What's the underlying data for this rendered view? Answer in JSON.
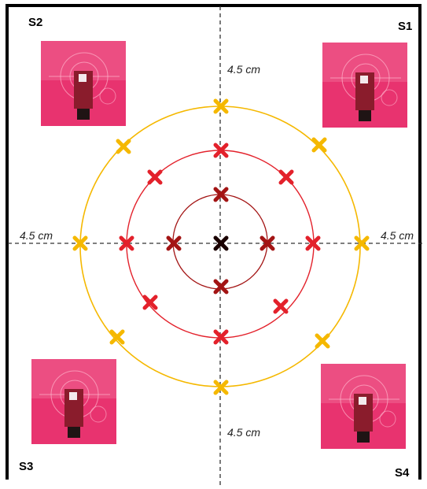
{
  "sensors": [
    {
      "id": "S1",
      "label": "S1"
    },
    {
      "id": "S2",
      "label": "S2"
    },
    {
      "id": "S3",
      "label": "S3"
    },
    {
      "id": "S4",
      "label": "S4"
    }
  ],
  "distances": {
    "top": "4.5 cm",
    "left": "4.5 cm",
    "right": "4.5 cm",
    "bottom": "4.5 cm"
  },
  "colors": {
    "outer_ring": "#f5b800",
    "middle_ring": "#e3212b",
    "inner_ring": "#a31414",
    "center_mark": "#1a0000",
    "photo_bg": "#e8336f",
    "axis": "#333333"
  },
  "rings": [
    {
      "name": "inner",
      "marks": 4
    },
    {
      "name": "middle",
      "marks": 8
    },
    {
      "name": "outer",
      "marks": 8
    }
  ]
}
